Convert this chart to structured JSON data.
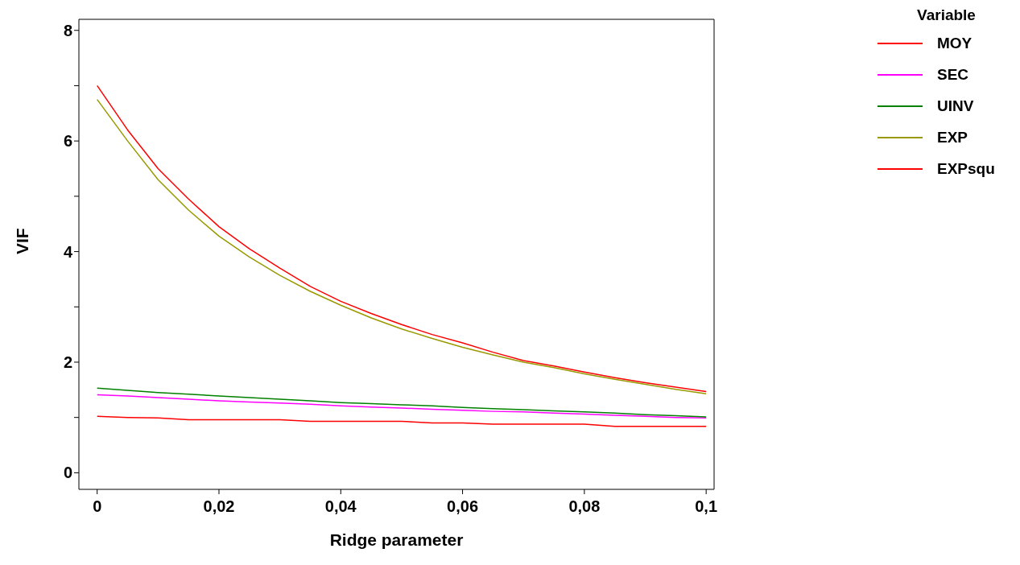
{
  "chart_data": {
    "type": "line",
    "xlabel": "Ridge parameter",
    "ylabel": "VIF",
    "legend_title": "Variable",
    "x": [
      0,
      0.005,
      0.01,
      0.015,
      0.02,
      0.025,
      0.03,
      0.035,
      0.04,
      0.045,
      0.05,
      0.055,
      0.06,
      0.065,
      0.07,
      0.075,
      0.08,
      0.085,
      0.09,
      0.095,
      0.1
    ],
    "series": [
      {
        "name": "MOY",
        "color": "#ff0000",
        "values": [
          7.0,
          6.2,
          5.5,
          4.95,
          4.45,
          4.05,
          3.7,
          3.37,
          3.1,
          2.88,
          2.68,
          2.5,
          2.35,
          2.18,
          2.03,
          1.93,
          1.82,
          1.72,
          1.63,
          1.55,
          1.47
        ]
      },
      {
        "name": "SEC",
        "color": "#ff00ff",
        "values": [
          1.41,
          1.39,
          1.36,
          1.33,
          1.3,
          1.28,
          1.26,
          1.24,
          1.21,
          1.19,
          1.17,
          1.15,
          1.13,
          1.11,
          1.1,
          1.08,
          1.06,
          1.04,
          1.02,
          1.0,
          0.99
        ]
      },
      {
        "name": "UINV",
        "color": "#008000",
        "values": [
          1.53,
          1.49,
          1.45,
          1.42,
          1.39,
          1.36,
          1.33,
          1.3,
          1.27,
          1.25,
          1.23,
          1.21,
          1.18,
          1.16,
          1.14,
          1.12,
          1.1,
          1.08,
          1.05,
          1.03,
          1.01
        ]
      },
      {
        "name": "EXP",
        "color": "#999900",
        "values": [
          6.75,
          6.0,
          5.3,
          4.75,
          4.28,
          3.9,
          3.57,
          3.28,
          3.03,
          2.8,
          2.6,
          2.43,
          2.27,
          2.13,
          2.0,
          1.9,
          1.79,
          1.69,
          1.6,
          1.51,
          1.43
        ]
      },
      {
        "name": "EXPsqu",
        "color": "#ff0000",
        "values": [
          1.02,
          1.0,
          0.99,
          0.96,
          0.96,
          0.96,
          0.96,
          0.93,
          0.93,
          0.93,
          0.93,
          0.9,
          0.9,
          0.88,
          0.88,
          0.88,
          0.88,
          0.84,
          0.84,
          0.84,
          0.84
        ]
      }
    ],
    "xlim": [
      -0.003,
      0.1013
    ],
    "ylim": [
      -0.3,
      8.2
    ],
    "xticks": [
      {
        "value": 0,
        "label": "0"
      },
      {
        "value": 0.02,
        "label": "0,02"
      },
      {
        "value": 0.04,
        "label": "0,04"
      },
      {
        "value": 0.06,
        "label": "0,06"
      },
      {
        "value": 0.08,
        "label": "0,08"
      },
      {
        "value": 0.1,
        "label": "0,1"
      }
    ],
    "yticks": [
      0,
      {
        "value": 1,
        "label": null
      },
      2,
      {
        "value": 3,
        "label": null
      },
      4,
      {
        "value": 5,
        "label": null
      },
      6,
      {
        "value": 7,
        "label": null
      },
      8
    ],
    "grid": false,
    "legend": "top right",
    "marker": "none",
    "line_style": "solid"
  }
}
